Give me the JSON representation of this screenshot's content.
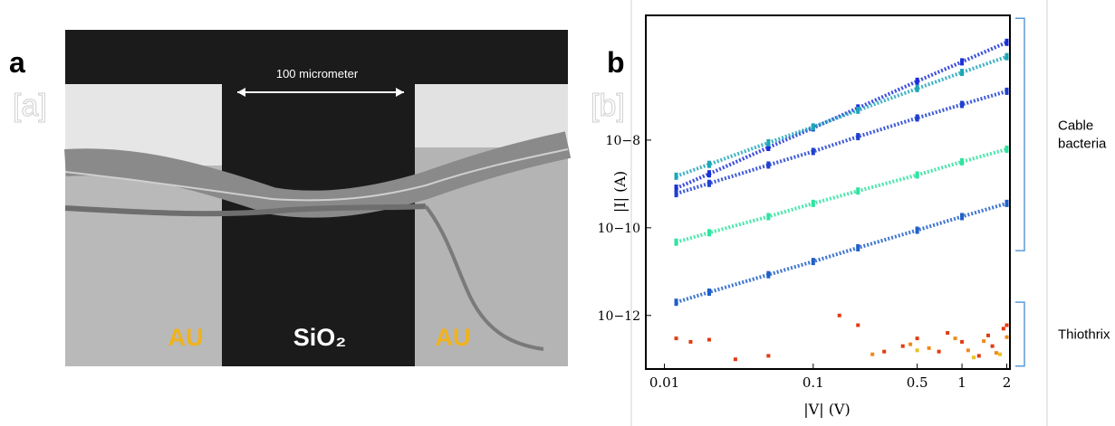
{
  "panel_a": {
    "label": "a",
    "marker": "[a]",
    "scale_label": "100 micrometer",
    "left_electrode": "AU",
    "center_label": "SiO₂",
    "right_electrode": "AU"
  },
  "chart_data": {
    "type": "scatter",
    "panel_label": "b",
    "marker": "[b]",
    "x_label": "|V| (V)",
    "y_label": "|I| (A)",
    "log_x": true,
    "log_y": true,
    "xlim": [
      0.0075,
      2.1
    ],
    "ylim": [
      6e-14,
      7e-06
    ],
    "xticks": [
      0.01,
      0.1,
      0.5,
      1,
      2
    ],
    "yticks": [
      {
        "value": 1e-12,
        "label": "10−12"
      },
      {
        "value": 1e-10,
        "label": "10−10"
      },
      {
        "value": 1e-08,
        "label": "10−8"
      }
    ],
    "annotations": [
      {
        "text": "Cable bacteria",
        "range": [
          3e-11,
          6e-06
        ]
      },
      {
        "text": "Thiothrix",
        "range": [
          7e-14,
          2e-12
        ]
      }
    ],
    "series": [
      {
        "color": "#1a2fd8",
        "x": [
          0.012,
          0.02,
          0.05,
          0.1,
          0.2,
          0.5,
          1,
          2
        ],
        "values": [
          8e-10,
          1.7e-09,
          6.8e-09,
          1.9e-08,
          5.4e-08,
          2.2e-07,
          6.1e-07,
          1.7e-06
        ]
      },
      {
        "color": "#1fa6b8",
        "x": [
          0.012,
          0.02,
          0.05,
          0.1,
          0.2,
          0.5,
          1,
          2
        ],
        "values": [
          1.5e-09,
          2.8e-09,
          8.7e-09,
          2e-08,
          4.8e-08,
          1.5e-07,
          3.5e-07,
          8e-07
        ]
      },
      {
        "color": "#2040d0",
        "x": [
          0.012,
          0.02,
          0.05,
          0.1,
          0.2,
          0.5,
          1,
          2
        ],
        "values": [
          6e-10,
          1.03e-09,
          2.7e-09,
          5.5e-09,
          1.2e-08,
          3.2e-08,
          6.5e-08,
          1.3e-07
        ]
      },
      {
        "color": "#2ee3a0",
        "x": [
          0.012,
          0.02,
          0.05,
          0.1,
          0.2,
          0.5,
          1,
          2
        ],
        "values": [
          4.7e-11,
          7.7e-11,
          1.8e-10,
          3.6e-10,
          6.9e-10,
          1.6e-09,
          3.2e-09,
          6.2e-09
        ]
      },
      {
        "color": "#1f5fc8",
        "x": [
          0.012,
          0.02,
          0.05,
          0.1,
          0.2,
          0.5,
          1,
          2
        ],
        "values": [
          2e-12,
          3.4e-12,
          8.5e-12,
          1.7e-11,
          3.5e-11,
          8.8e-11,
          1.8e-10,
          3.6e-10
        ]
      },
      {
        "color": "#e23b12",
        "x": [
          0.012,
          0.015,
          0.02,
          0.03,
          0.05,
          0.15,
          0.2,
          0.3,
          0.4,
          0.5,
          0.7,
          0.8,
          1,
          1.3,
          1.5,
          1.6,
          1.9,
          2
        ],
        "values": [
          3e-13,
          2.5e-13,
          2.8e-13,
          1e-13,
          1.2e-13,
          1e-12,
          6e-13,
          1.5e-13,
          2e-13,
          3e-13,
          1.5e-13,
          4e-13,
          2.5e-13,
          1.2e-13,
          3.5e-13,
          2e-13,
          5e-13,
          6e-13
        ]
      },
      {
        "color": "#f08a1c",
        "x": [
          0.25,
          0.45,
          0.6,
          0.9,
          1.1,
          1.4,
          1.7,
          2
        ],
        "values": [
          1.3e-13,
          2.2e-13,
          1.8e-13,
          3e-13,
          1.6e-13,
          2.6e-13,
          1.4e-13,
          3.2e-13
        ]
      },
      {
        "color": "#e8c21e",
        "x": [
          0.5,
          1.2,
          1.8
        ],
        "values": [
          1.6e-13,
          1.1e-13,
          1.3e-13
        ]
      }
    ]
  }
}
